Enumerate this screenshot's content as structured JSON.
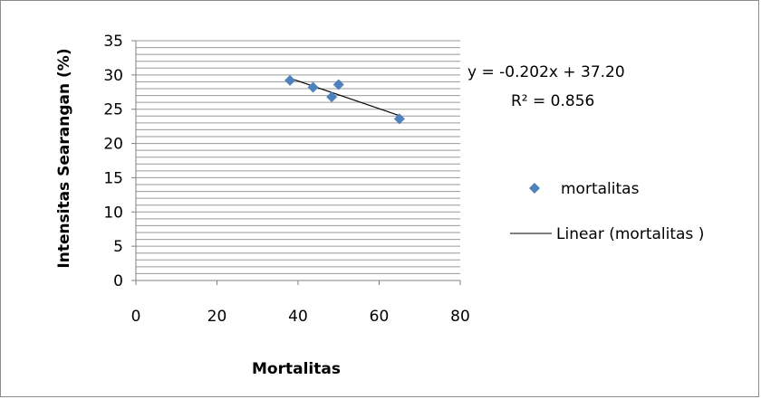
{
  "chart_data": {
    "type": "scatter",
    "xlabel": "Mortalitas",
    "ylabel": "Intensitas Searangan (%)",
    "xlim": [
      0,
      80
    ],
    "ylim": [
      0,
      35
    ],
    "xticks": [
      0,
      20,
      40,
      60,
      80
    ],
    "yticks": [
      0,
      5,
      10,
      15,
      20,
      25,
      30,
      35
    ],
    "grid": "horizontal minor",
    "series": [
      {
        "name": "mortalitas",
        "marker": "diamond",
        "color": "#4f81bd",
        "points": [
          {
            "x": 38,
            "y": 29.2
          },
          {
            "x": 43.7,
            "y": 28.2
          },
          {
            "x": 48.3,
            "y": 26.8
          },
          {
            "x": 50,
            "y": 28.6
          },
          {
            "x": 65,
            "y": 23.6
          }
        ]
      }
    ],
    "trendline": {
      "name": "Linear (mortalitas )",
      "type": "linear",
      "slope": -0.202,
      "intercept": 37.2,
      "x_range": [
        38,
        65
      ],
      "color": "#000000"
    },
    "annotations": {
      "equation": "y = -0.202x + 37.20",
      "r_squared": "R² = 0.856"
    },
    "legend_position": "right"
  }
}
